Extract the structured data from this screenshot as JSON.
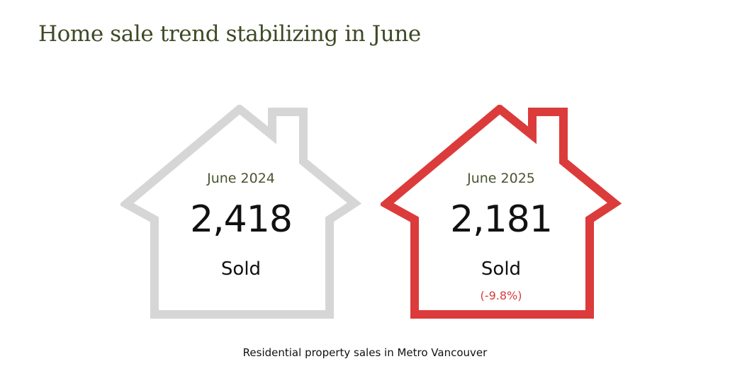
{
  "title": "Home sale trend stabilizing in June",
  "houses": [
    {
      "period": "June 2024",
      "count": "2,418",
      "label": "Sold",
      "change": "",
      "outline_color": "#d6d6d6"
    },
    {
      "period": "June 2025",
      "count": "2,181",
      "label": "Sold",
      "change": "(-9.8%)",
      "outline_color": "#dc3b3b"
    }
  ],
  "footnote": "Residential property sales in Metro Vancouver",
  "colors": {
    "title": "#3d4a25",
    "period_text": "#4a5530",
    "change_text": "#d63b3b"
  }
}
